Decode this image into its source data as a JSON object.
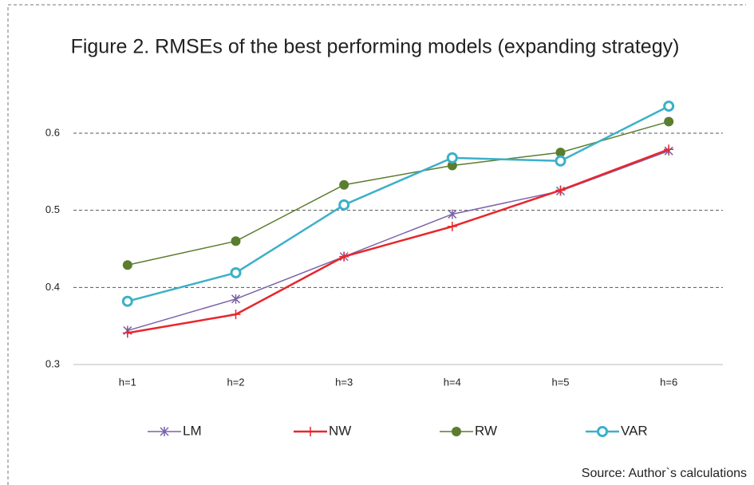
{
  "chart_data": {
    "type": "line",
    "title": "Figure 2. RMSEs of the best performing models (expanding strategy)",
    "source": "Source: Author`s calculations",
    "categories": [
      "h=1",
      "h=2",
      "h=3",
      "h=4",
      "h=5",
      "h=6"
    ],
    "series": [
      {
        "name": "LM",
        "color": "#7b62a8",
        "marker": "star",
        "values": [
          0.344,
          0.385,
          0.44,
          0.495,
          0.525,
          0.577
        ]
      },
      {
        "name": "NW",
        "color": "#e8262b",
        "marker": "plus",
        "values": [
          0.341,
          0.365,
          0.44,
          0.479,
          0.526,
          0.579
        ]
      },
      {
        "name": "RW",
        "color": "#5a7d2e",
        "marker": "dot",
        "values": [
          0.429,
          0.46,
          0.533,
          0.558,
          0.575,
          0.615
        ]
      },
      {
        "name": "VAR",
        "color": "#3bb0c9",
        "marker": "ring",
        "values": [
          0.382,
          0.419,
          0.507,
          0.568,
          0.564,
          0.635
        ]
      }
    ],
    "ylim": [
      0.3,
      0.65
    ],
    "yticks": [
      0.3,
      0.4,
      0.5,
      0.6
    ],
    "grid": true,
    "legend": "bottom"
  }
}
